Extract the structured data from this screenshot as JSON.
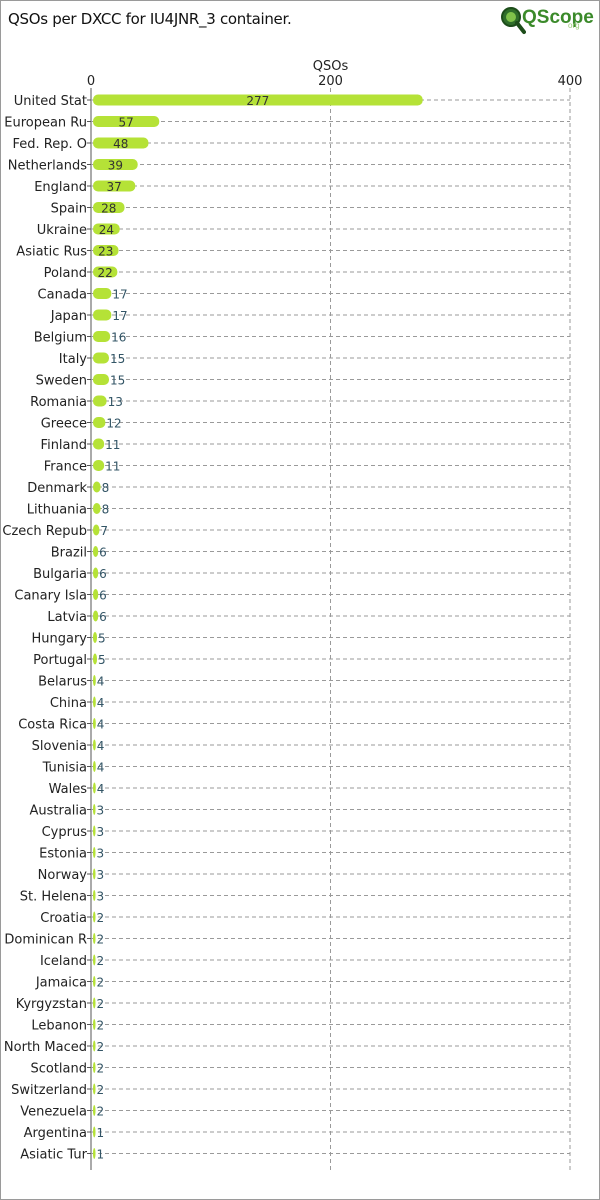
{
  "title": "QSOs per DXCC for IU4JNR_3 container.",
  "logo": {
    "text": "QScope",
    "sub": "org"
  },
  "colors": {
    "bar": "#b5e237",
    "grid": "#9a9a9a",
    "axis": "#555555",
    "text": "#222222",
    "label_inside": "#333333",
    "label_outside": "#335566"
  },
  "chart_data": {
    "type": "bar",
    "orientation": "horizontal",
    "title": "QSOs per DXCC for IU4JNR_3 container.",
    "xlabel": "QSOs",
    "ylabel": "",
    "xlim": [
      0,
      400
    ],
    "xticks": [
      0,
      200,
      400
    ],
    "grid": true,
    "categories": [
      "United Stat",
      "European Ru",
      "Fed. Rep. O",
      "Netherlands",
      "England",
      "Spain",
      "Ukraine",
      "Asiatic Rus",
      "Poland",
      "Canada",
      "Japan",
      "Belgium",
      "Italy",
      "Sweden",
      "Romania",
      "Greece",
      "Finland",
      "France",
      "Denmark",
      "Lithuania",
      "Czech Repub",
      "Brazil",
      "Bulgaria",
      "Canary Isla",
      "Latvia",
      "Hungary",
      "Portugal",
      "Belarus",
      "China",
      "Costa Rica",
      "Slovenia",
      "Tunisia",
      "Wales",
      "Australia",
      "Cyprus",
      "Estonia",
      "Norway",
      "St. Helena",
      "Croatia",
      "Dominican R",
      "Iceland",
      "Jamaica",
      "Kyrgyzstan",
      "Lebanon",
      "North Maced",
      "Scotland",
      "Switzerland",
      "Venezuela",
      "Argentina",
      "Asiatic Tur"
    ],
    "values": [
      277,
      57,
      48,
      39,
      37,
      28,
      24,
      23,
      22,
      17,
      17,
      16,
      15,
      15,
      13,
      12,
      11,
      11,
      8,
      8,
      7,
      6,
      6,
      6,
      6,
      5,
      5,
      4,
      4,
      4,
      4,
      4,
      4,
      3,
      3,
      3,
      3,
      3,
      2,
      2,
      2,
      2,
      2,
      2,
      2,
      2,
      2,
      2,
      1,
      1
    ]
  }
}
